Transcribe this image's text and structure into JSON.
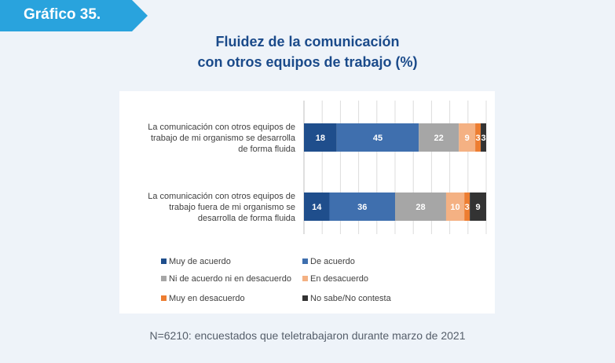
{
  "header": {
    "badge": "Gráfico 35."
  },
  "chart_data": {
    "type": "bar",
    "orientation": "horizontal",
    "stacked": true,
    "title_lines": [
      "Fluidez de la comunicación",
      "con otros equipos de trabajo (%)"
    ],
    "categories": [
      [
        "La comunicación con otros equipos de",
        "trabajo de mi organismo se desarrolla",
        "de forma fluida"
      ],
      [
        "La comunicación con otros equipos de",
        "trabajo fuera de mi organismo se",
        "desarrolla de forma fluida"
      ]
    ],
    "series": [
      {
        "name": "Muy de acuerdo",
        "color": "#1f4e8c",
        "values": [
          18,
          14
        ]
      },
      {
        "name": "De acuerdo",
        "color": "#3f6fae",
        "values": [
          45,
          36
        ]
      },
      {
        "name": "Ni de acuerdo ni en desacuerdo",
        "color": "#a6a6a6",
        "values": [
          22,
          28
        ]
      },
      {
        "name": "En desacuerdo",
        "color": "#f4b183",
        "values": [
          9,
          10
        ]
      },
      {
        "name": "Muy en desacuerdo",
        "color": "#ed7d31",
        "values": [
          3,
          3
        ]
      },
      {
        "name": "No sabe/No contesta",
        "color": "#333333",
        "values": [
          3,
          9
        ]
      }
    ],
    "xlim": [
      0,
      100
    ],
    "grid": true,
    "legend_position": "bottom"
  },
  "footer": {
    "note": "N=6210: encuestados que teletrabajaron durante marzo de 2021"
  }
}
